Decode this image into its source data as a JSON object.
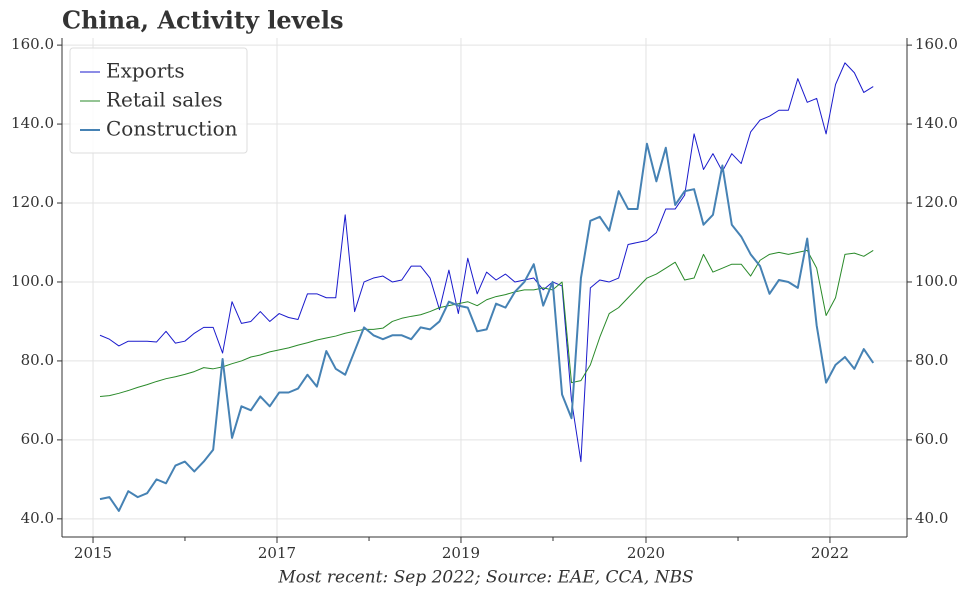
{
  "chart_data": {
    "type": "line",
    "title": "China, Activity levels",
    "footnote": "Most recent: Sep 2022; Source: EAE, CCA, NBS",
    "x": [
      0,
      1,
      2,
      3,
      4,
      5,
      6,
      7,
      8,
      9,
      10,
      11,
      12,
      13,
      14,
      15,
      16,
      17,
      18,
      19,
      20,
      21,
      22,
      23,
      24,
      25,
      26,
      27,
      28,
      29,
      30,
      31,
      32,
      33,
      34,
      35,
      36,
      37,
      38,
      39,
      40,
      41,
      42,
      43,
      44,
      45,
      46,
      47,
      48,
      49,
      50,
      51,
      52,
      53,
      54,
      55,
      56,
      57,
      58,
      59,
      60,
      61,
      62,
      63,
      64,
      65,
      66,
      67,
      68,
      69,
      70,
      71,
      72,
      73,
      74,
      75,
      76,
      77,
      78,
      79,
      80,
      81,
      82
    ],
    "series": [
      {
        "name": "Exports",
        "color": "#1a1acc",
        "width": 1,
        "values": [
          86.5,
          85.5,
          83.8,
          85,
          85,
          85,
          84.8,
          87.5,
          84.5,
          85,
          87,
          88.5,
          88.5,
          82,
          95,
          89.5,
          90,
          92.5,
          90,
          92,
          91,
          90.5,
          97,
          97,
          96,
          96,
          117,
          92.5,
          100,
          101,
          101.5,
          100,
          100.5,
          104,
          104,
          101,
          93,
          103,
          92,
          106,
          97,
          102.5,
          100.5,
          102,
          100,
          100.5,
          101,
          98,
          100,
          99,
          70,
          54.5,
          98.5,
          100.5,
          100,
          101,
          109.5,
          110,
          110.5,
          112.5,
          118.5,
          118.5,
          122,
          137.5,
          128.5,
          132.5,
          128,
          132.5,
          130,
          138,
          141,
          142,
          143.5,
          143.5,
          151.5,
          145.5,
          146.5,
          137.5,
          150,
          155.5,
          153,
          148,
          149.5
        ]
      },
      {
        "name": "Retail sales",
        "color": "#2a8a2a",
        "width": 1,
        "values": [
          71,
          71.2,
          71.8,
          72.5,
          73.3,
          74,
          74.8,
          75.5,
          76,
          76.6,
          77.3,
          78.3,
          78,
          78.5,
          79.3,
          80,
          81,
          81.5,
          82.3,
          82.8,
          83.3,
          84,
          84.6,
          85.3,
          85.8,
          86.3,
          87,
          87.5,
          88,
          88,
          88.3,
          90,
          90.8,
          91.3,
          91.7,
          92.5,
          93.5,
          94,
          94.5,
          95,
          94,
          95.5,
          96.3,
          96.8,
          97.5,
          98,
          98,
          98.5,
          98,
          100,
          74.5,
          75,
          79,
          86,
          92,
          93.5,
          96,
          98.5,
          101,
          102,
          103.5,
          105,
          100.5,
          101,
          107,
          102.5,
          103.5,
          104.5,
          104.5,
          101.5,
          105.5,
          107,
          107.5,
          107,
          107.5,
          108,
          103.5,
          91.5,
          96,
          107,
          107.3,
          106.5,
          108
        ]
      },
      {
        "name": "Construction",
        "color": "#4682b4",
        "width": 2,
        "values": [
          45,
          45.5,
          42,
          47,
          45.5,
          46.5,
          50,
          49,
          53.5,
          54.5,
          52,
          54.5,
          57.5,
          80.5,
          60.5,
          68.5,
          67.5,
          71,
          68.5,
          72,
          72,
          73,
          76.5,
          73.5,
          82.5,
          78,
          76.5,
          82.5,
          88.5,
          86.5,
          85.5,
          86.5,
          86.5,
          85.5,
          88.5,
          88,
          90,
          95,
          94,
          93.5,
          87.5,
          88,
          94.5,
          93.5,
          97.5,
          100,
          104.5,
          94,
          100,
          71.5,
          65.5,
          101,
          115.5,
          116.5,
          113,
          123,
          118.5,
          118.5,
          135,
          125.5,
          134,
          119.5,
          123,
          123.5,
          114.5,
          117,
          129.5,
          114.5,
          111.5,
          107,
          104,
          97,
          100.5,
          100,
          98.5,
          111,
          89,
          74.5,
          79,
          81,
          78,
          83,
          79.5
        ]
      }
    ],
    "xlim": [
      -4.03,
      85.58
    ],
    "xticks": [
      {
        "value": -0.74,
        "label": "2015"
      },
      {
        "value": 18.77,
        "label": "2017"
      },
      {
        "value": 38.28,
        "label": "2019"
      },
      {
        "value": 57.9,
        "label": "2020"
      },
      {
        "value": 77.41,
        "label": "2022"
      }
    ],
    "xminor_ticks": [
      9.01,
      28.53,
      48.04,
      67.66
    ],
    "ylim": [
      35.4,
      161.8
    ],
    "yticks": [
      {
        "value": 40,
        "label": "40.0"
      },
      {
        "value": 60,
        "label": "60.0"
      },
      {
        "value": 80,
        "label": "80.0"
      },
      {
        "value": 100,
        "label": "100.0"
      },
      {
        "value": 120,
        "label": "120.0"
      },
      {
        "value": 140,
        "label": "140.0"
      },
      {
        "value": 160,
        "label": "160.0"
      }
    ],
    "y_right_labels": true,
    "grid": true,
    "legend": "upper left"
  }
}
